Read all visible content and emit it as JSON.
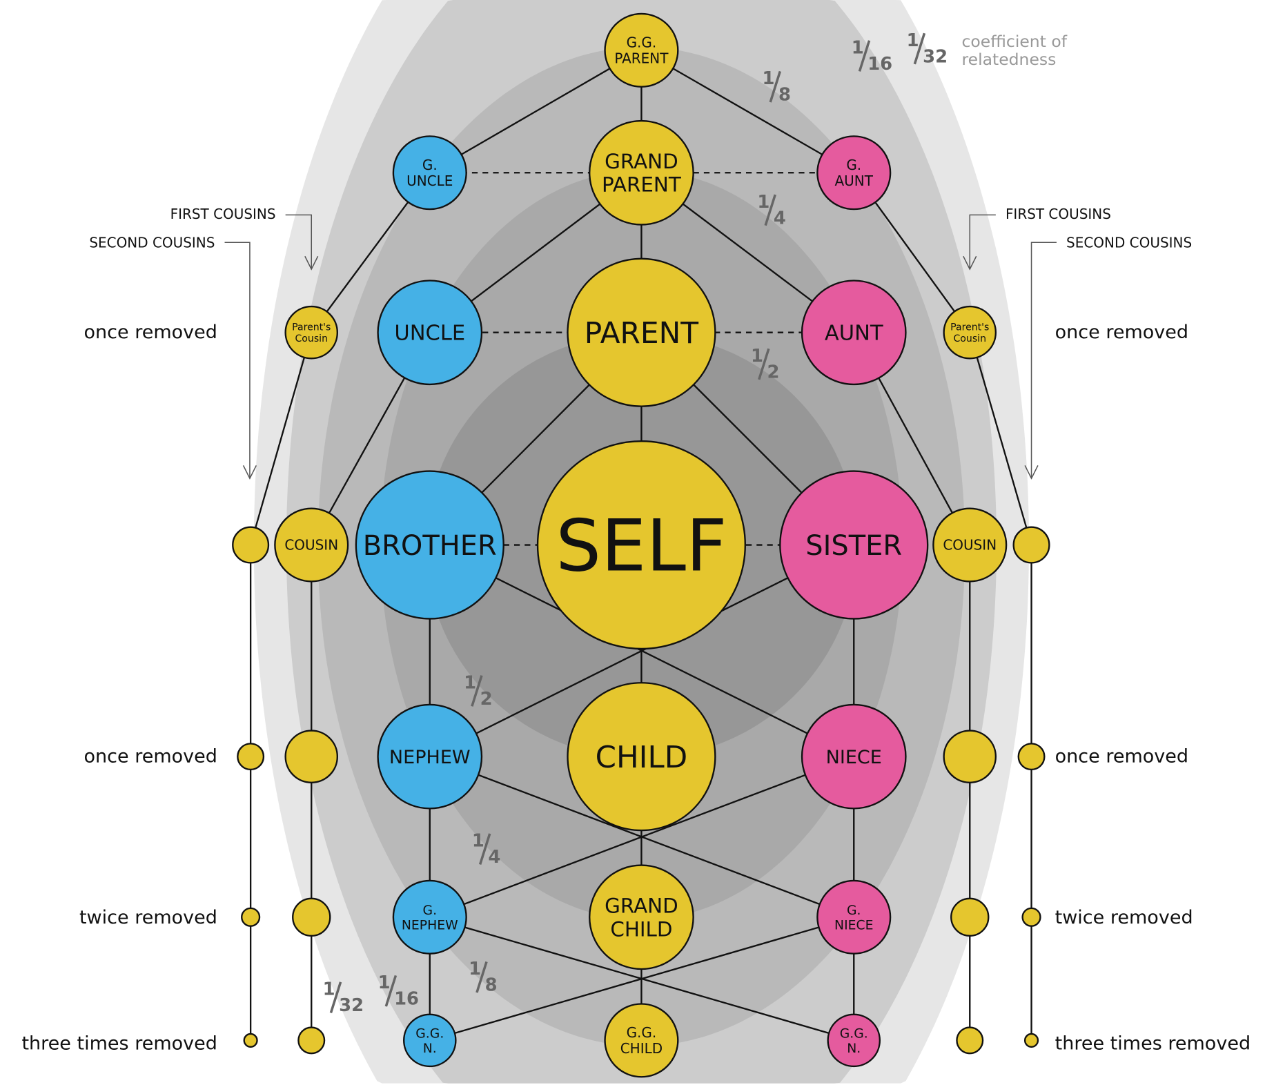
{
  "colors": {
    "self_line": "#e5c62e",
    "brother_line": "#45b1e6",
    "sister_line": "#e55b9e",
    "ring1": "#e6e6e6",
    "ring2": "#cccccc",
    "ring3": "#b9b9b9",
    "ring4": "#a9a9a9",
    "ring5": "#979797"
  },
  "nodes": [
    {
      "id": "ggparent",
      "lines": [
        "G.G.",
        "PARENT"
      ],
      "line": "self_line"
    },
    {
      "id": "guncle",
      "lines": [
        "G.",
        "UNCLE"
      ],
      "line": "brother_line"
    },
    {
      "id": "grandparent",
      "lines": [
        "GRAND",
        "PARENT"
      ],
      "line": "self_line"
    },
    {
      "id": "gaunt",
      "lines": [
        "G.",
        "AUNT"
      ],
      "line": "sister_line"
    },
    {
      "id": "pcousin-l",
      "lines": [
        "Parent's",
        "Cousin"
      ],
      "line": "self_line"
    },
    {
      "id": "uncle",
      "lines": [
        "UNCLE"
      ],
      "line": "brother_line"
    },
    {
      "id": "parent",
      "lines": [
        "PARENT"
      ],
      "line": "self_line"
    },
    {
      "id": "aunt",
      "lines": [
        "AUNT"
      ],
      "line": "sister_line"
    },
    {
      "id": "pcousin-r",
      "lines": [
        "Parent's",
        "Cousin"
      ],
      "line": "self_line"
    },
    {
      "id": "second-cousin-l",
      "lines": [],
      "line": "self_line"
    },
    {
      "id": "cousin-l",
      "lines": [
        "COUSIN"
      ],
      "line": "self_line"
    },
    {
      "id": "brother",
      "lines": [
        "BROTHER"
      ],
      "line": "brother_line"
    },
    {
      "id": "self",
      "lines": [
        "SELF"
      ],
      "line": "self_line"
    },
    {
      "id": "sister",
      "lines": [
        "SISTER"
      ],
      "line": "sister_line"
    },
    {
      "id": "cousin-r",
      "lines": [
        "COUSIN"
      ],
      "line": "self_line"
    },
    {
      "id": "second-cousin-r",
      "lines": [],
      "line": "self_line"
    },
    {
      "id": "sc1-l",
      "lines": [],
      "line": "self_line"
    },
    {
      "id": "c1-l",
      "lines": [],
      "line": "self_line"
    },
    {
      "id": "nephew",
      "lines": [
        "NEPHEW"
      ],
      "line": "brother_line"
    },
    {
      "id": "child",
      "lines": [
        "CHILD"
      ],
      "line": "self_line"
    },
    {
      "id": "niece",
      "lines": [
        "NIECE"
      ],
      "line": "sister_line"
    },
    {
      "id": "c1-r",
      "lines": [],
      "line": "self_line"
    },
    {
      "id": "sc1-r",
      "lines": [],
      "line": "self_line"
    },
    {
      "id": "sc2-l",
      "lines": [],
      "line": "self_line"
    },
    {
      "id": "c2-l",
      "lines": [],
      "line": "self_line"
    },
    {
      "id": "gnephew",
      "lines": [
        "G.",
        "NEPHEW"
      ],
      "line": "brother_line"
    },
    {
      "id": "grandchild",
      "lines": [
        "GRAND",
        "CHILD"
      ],
      "line": "self_line"
    },
    {
      "id": "gniece",
      "lines": [
        "G.",
        "NIECE"
      ],
      "line": "sister_line"
    },
    {
      "id": "c2-r",
      "lines": [],
      "line": "self_line"
    },
    {
      "id": "sc2-r",
      "lines": [],
      "line": "self_line"
    },
    {
      "id": "sc3-l",
      "lines": [],
      "line": "self_line"
    },
    {
      "id": "c3-l",
      "lines": [],
      "line": "self_line"
    },
    {
      "id": "ggnephew",
      "lines": [
        "G.G.",
        "N."
      ],
      "line": "brother_line"
    },
    {
      "id": "ggchild",
      "lines": [
        "G.G.",
        "CHILD"
      ],
      "line": "self_line"
    },
    {
      "id": "ggniece",
      "lines": [
        "G.G.",
        "N."
      ],
      "line": "sister_line"
    },
    {
      "id": "c3-r",
      "lines": [],
      "line": "self_line"
    },
    {
      "id": "sc3-r",
      "lines": [],
      "line": "self_line"
    }
  ],
  "fractions": [
    {
      "num": "1",
      "den": "8"
    },
    {
      "num": "1",
      "den": "4"
    },
    {
      "num": "1",
      "den": "2"
    },
    {
      "num": "1",
      "den": "16"
    },
    {
      "num": "1",
      "den": "32"
    },
    {
      "num": "1",
      "den": "2"
    },
    {
      "num": "1",
      "den": "4"
    },
    {
      "num": "1",
      "den": "8"
    },
    {
      "num": "1",
      "den": "16"
    },
    {
      "num": "1",
      "den": "32"
    }
  ],
  "legend": {
    "line1": "coefficient of",
    "line2": "relatedness"
  },
  "labels": {
    "first_cousins": "FIRST COUSINS",
    "second_cousins": "SECOND COUSINS",
    "once_removed": "once removed",
    "twice_removed": "twice removed",
    "three_times_removed": "three times removed"
  }
}
